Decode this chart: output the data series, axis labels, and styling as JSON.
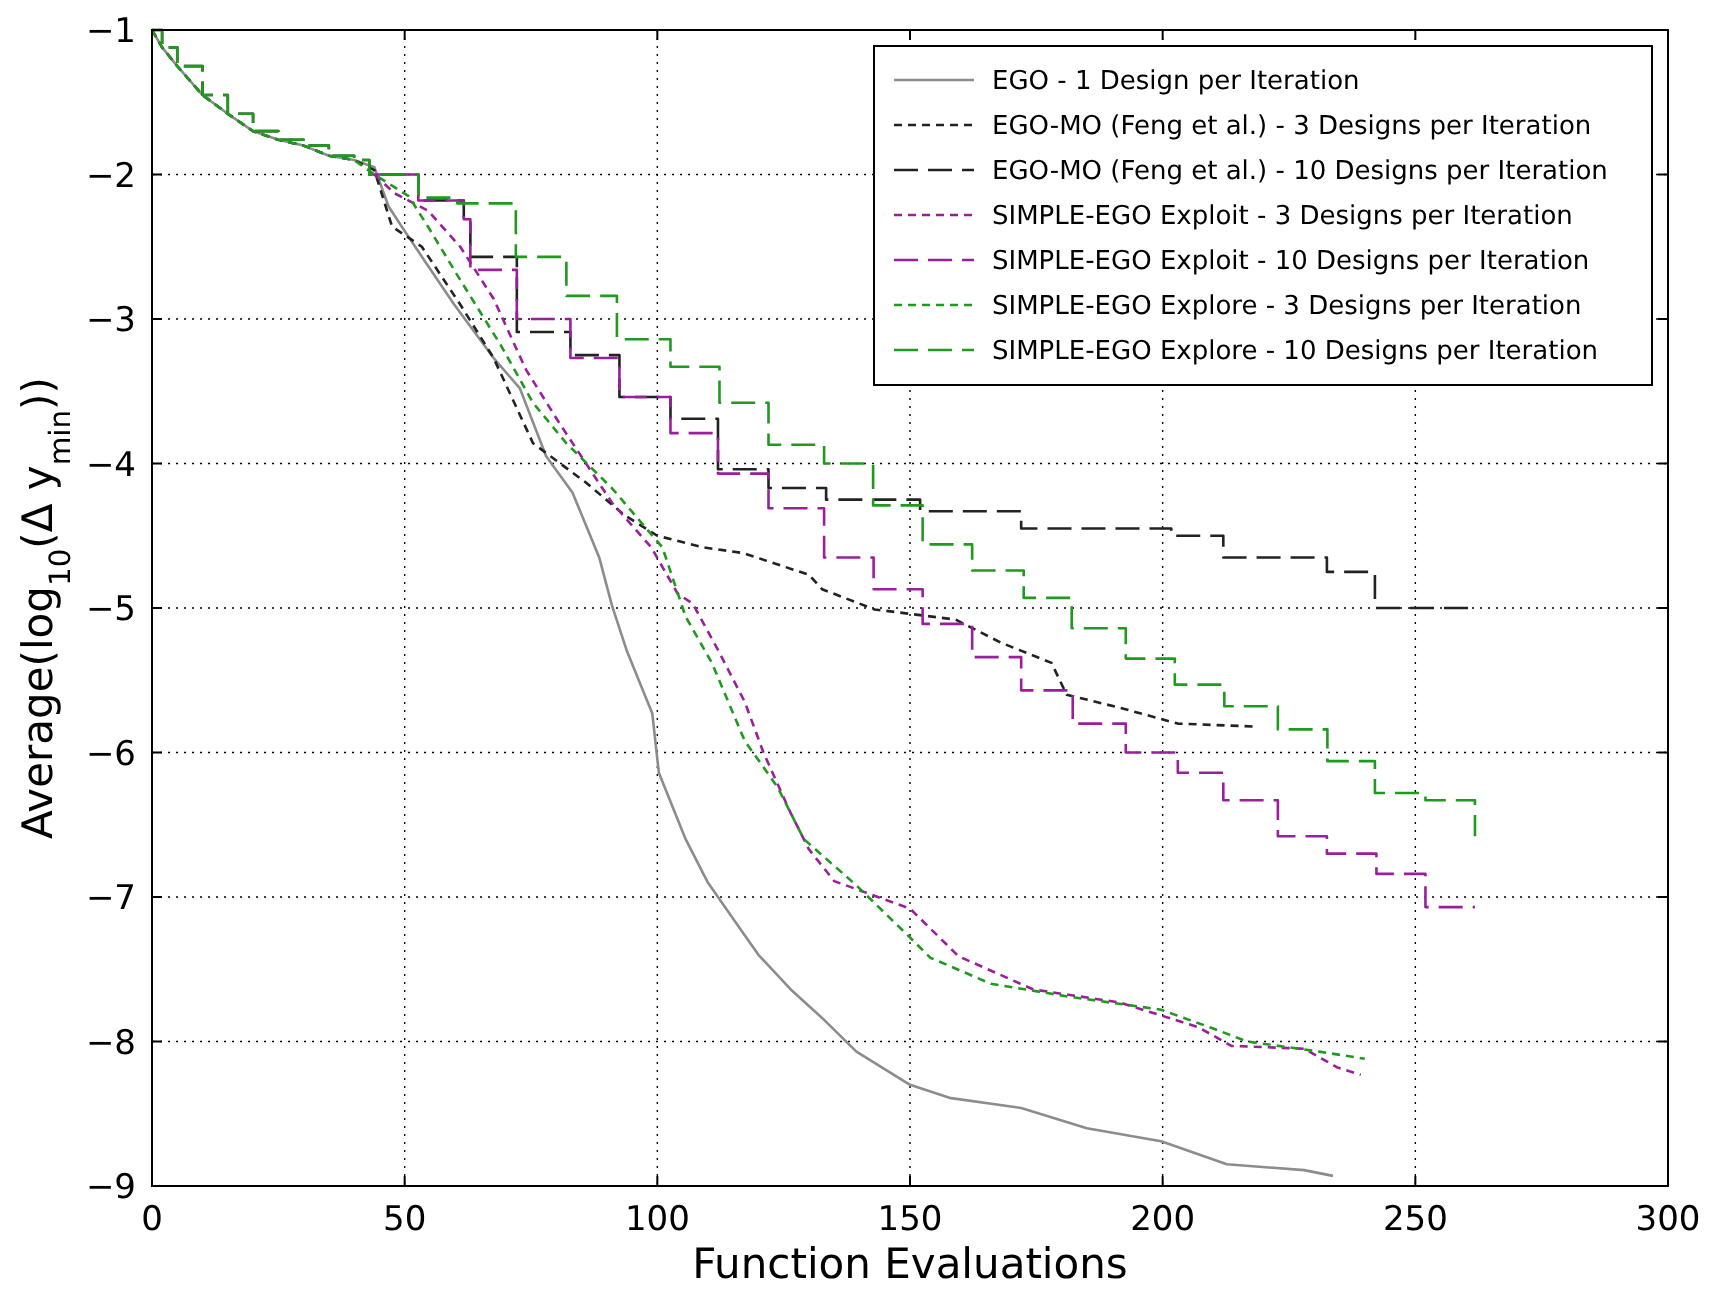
{
  "chart_data": {
    "type": "line",
    "xlabel": "Function Evaluations",
    "ylabel": "Average(log$_{10}$(Δ y$_{min}$))",
    "xlim": [
      0,
      300
    ],
    "xticks": [
      0,
      50,
      100,
      150,
      200,
      250,
      300
    ],
    "ylim": [
      -9,
      -1
    ],
    "yticks": [
      -9,
      -8,
      -7,
      -6,
      -5,
      -4,
      -3,
      -2,
      -1
    ],
    "grid": true,
    "legend": "top right",
    "series": [
      {
        "name": "EGO - 1 Design per Iteration",
        "color": "#8c8c8c",
        "line_style": "solid",
        "x": [
          0,
          2,
          5,
          10,
          15,
          20,
          25,
          30,
          35,
          40,
          44,
          46.8,
          49.4,
          54,
          59.8,
          67.6,
          72.8,
          78,
          83.2,
          88.5,
          91,
          94,
          99,
          100.3,
          105.6,
          110,
          115,
          120,
          126.4,
          133,
          139.4,
          150,
          157.8,
          172,
          185,
          199.7,
          212.7,
          228,
          233.7
        ],
        "values": [
          -1,
          -1.12,
          -1.25,
          -1.45,
          -1.58,
          -1.7,
          -1.76,
          -1.8,
          -1.87,
          -1.9,
          -1.95,
          -2.22,
          -2.36,
          -2.6,
          -2.9,
          -3.27,
          -3.48,
          -3.95,
          -4.2,
          -4.65,
          -4.98,
          -5.3,
          -5.73,
          -6.14,
          -6.6,
          -6.9,
          -7.15,
          -7.4,
          -7.64,
          -7.85,
          -8.07,
          -8.3,
          -8.39,
          -8.46,
          -8.6,
          -8.69,
          -8.85,
          -8.89,
          -8.93
        ]
      },
      {
        "name": "EGO-MO (Feng et al.) - 3 Designs per Iteration",
        "color": "#222222",
        "line_style": "dashed",
        "x": [
          0,
          2,
          5,
          10,
          15,
          20,
          25,
          30,
          35,
          40,
          44,
          47.5,
          53.4,
          61,
          67.6,
          75.4,
          85.8,
          93.6,
          100,
          109,
          117,
          130,
          132.6,
          143,
          159,
          168,
          178,
          181,
          191.5,
          203,
          218
        ],
        "values": [
          -1,
          -1.12,
          -1.25,
          -1.45,
          -1.58,
          -1.7,
          -1.76,
          -1.8,
          -1.87,
          -1.9,
          -1.97,
          -2.36,
          -2.5,
          -2.9,
          -3.27,
          -3.86,
          -4.13,
          -4.36,
          -4.5,
          -4.58,
          -4.62,
          -4.77,
          -4.87,
          -5.01,
          -5.08,
          -5.24,
          -5.38,
          -5.6,
          -5.69,
          -5.8,
          -5.82
        ]
      },
      {
        "name": "EGO-MO (Feng et al.) - 10 Designs per Iteration",
        "type": "step",
        "color": "#222222",
        "line_style": "dashed",
        "x": [
          0,
          2,
          5,
          10,
          15,
          20,
          25,
          30,
          35,
          40,
          43,
          52.7,
          61.7,
          63,
          72.2,
          82.8,
          92.5,
          102.6,
          112,
          122,
          133.4,
          152,
          172,
          201.7,
          212,
          232.5,
          242,
          261.8
        ],
        "values": [
          -1,
          -1.12,
          -1.25,
          -1.45,
          -1.58,
          -1.7,
          -1.76,
          -1.8,
          -1.87,
          -1.9,
          -2,
          -2.18,
          -2.31,
          -2.57,
          -3.09,
          -3.25,
          -3.54,
          -3.69,
          -4.04,
          -4.17,
          -4.25,
          -4.33,
          -4.45,
          -4.5,
          -4.65,
          -4.75,
          -5,
          -5
        ]
      },
      {
        "name": "SIMPLE-EGO Exploit - 3 Designs per Iteration",
        "color": "#9b1f9b",
        "line_style": "dashed",
        "x": [
          44,
          48,
          54.6,
          61,
          67.6,
          74,
          80.6,
          91,
          98.8,
          104,
          107,
          112,
          117.3,
          121,
          126.4,
          130,
          135,
          150,
          159.6,
          174.4,
          191.5,
          207,
          213.6,
          228,
          234.6,
          239.2
        ],
        "values": [
          -2,
          -2.13,
          -2.25,
          -2.5,
          -2.86,
          -3.35,
          -3.72,
          -4.27,
          -4.58,
          -4.9,
          -4.97,
          -5.29,
          -5.65,
          -6,
          -6.42,
          -6.67,
          -6.89,
          -7.08,
          -7.41,
          -7.64,
          -7.73,
          -7.9,
          -8.03,
          -8.05,
          -8.18,
          -8.23
        ]
      },
      {
        "name": "SIMPLE-EGO Exploit - 10 Designs per Iteration",
        "type": "step",
        "color": "#9b1f9b",
        "line_style": "dashed",
        "x": [
          43,
          52.7,
          61.7,
          63,
          72.2,
          82.8,
          92.5,
          102.6,
          112,
          122,
          133,
          142.8,
          152.5,
          162.3,
          172,
          182.2,
          192.7,
          203,
          212,
          222.8,
          232.5,
          242.3,
          252,
          261.8
        ],
        "values": [
          -2,
          -2.18,
          -2.31,
          -2.66,
          -3,
          -3.27,
          -3.54,
          -3.79,
          -4.07,
          -4.31,
          -4.65,
          -4.87,
          -5.11,
          -5.34,
          -5.57,
          -5.8,
          -6,
          -6.14,
          -6.33,
          -6.58,
          -6.7,
          -6.84,
          -7.07,
          -7.07
        ]
      },
      {
        "name": "SIMPLE-EGO Explore - 3 Designs per Iteration",
        "color": "#1f9a1f",
        "line_style": "dashed",
        "x": [
          0,
          2,
          5,
          10,
          15,
          20,
          25,
          30,
          35,
          40,
          44,
          50.8,
          54.6,
          61,
          69,
          75.4,
          82,
          91,
          101,
          105.6,
          110.8,
          117.3,
          123.8,
          129,
          139.4,
          150,
          154,
          166,
          181.5,
          199.7,
          210,
          216.7,
          231,
          240
        ],
        "values": [
          -1,
          -1.12,
          -1.25,
          -1.45,
          -1.58,
          -1.7,
          -1.76,
          -1.8,
          -1.87,
          -1.9,
          -2,
          -2.15,
          -2.36,
          -2.73,
          -3.18,
          -3.58,
          -3.86,
          -4.17,
          -4.58,
          -5.06,
          -5.38,
          -5.92,
          -6.24,
          -6.6,
          -6.92,
          -7.28,
          -7.42,
          -7.6,
          -7.69,
          -7.78,
          -7.91,
          -8,
          -8.07,
          -8.12
        ]
      },
      {
        "name": "SIMPLE-EGO Explore - 10 Designs per Iteration",
        "type": "step",
        "color": "#1f9a1f",
        "line_style": "dashed",
        "x": [
          0,
          2,
          5,
          10,
          15,
          20,
          25,
          30,
          35,
          40,
          43,
          52.7,
          60.4,
          72,
          82,
          92,
          102.6,
          112.3,
          122,
          133,
          142.7,
          152.5,
          162.3,
          172.5,
          182,
          192.7,
          202.4,
          212.2,
          222.8,
          232.6,
          242,
          252,
          261.8
        ],
        "values": [
          -1,
          -1.12,
          -1.25,
          -1.45,
          -1.58,
          -1.7,
          -1.76,
          -1.8,
          -1.87,
          -1.9,
          -2,
          -2.16,
          -2.2,
          -2.57,
          -2.84,
          -3.14,
          -3.33,
          -3.58,
          -3.87,
          -4.0,
          -4.29,
          -4.56,
          -4.74,
          -4.93,
          -5.14,
          -5.35,
          -5.53,
          -5.68,
          -5.84,
          -6.06,
          -6.28,
          -6.33,
          -6.58
        ]
      }
    ]
  }
}
